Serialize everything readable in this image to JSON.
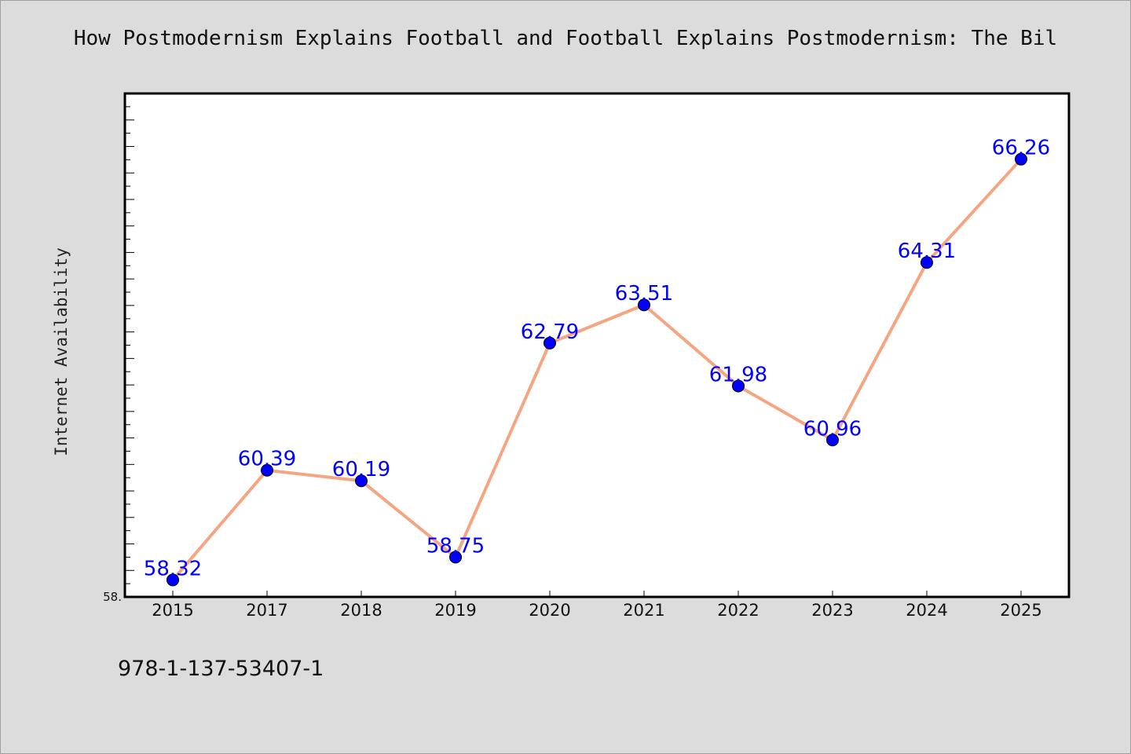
{
  "chart_data": {
    "type": "line",
    "title": "How Postmodernism Explains Football and Football Explains Postmodernism: The Bil",
    "xlabel": "",
    "ylabel": "Internet Availability",
    "categories": [
      "2015",
      "2017",
      "2018",
      "2019",
      "2020",
      "2021",
      "2022",
      "2023",
      "2024",
      "2025"
    ],
    "series": [
      {
        "values": [
          58.32,
          60.39,
          60.19,
          58.75,
          62.79,
          63.51,
          61.98,
          60.96,
          64.31,
          66.26
        ],
        "data_labels": [
          "58.32",
          "60.39",
          "60.19",
          "58.75",
          "62.79",
          "63.51",
          "61.98",
          "60.96",
          "64.31",
          "66.26"
        ]
      }
    ],
    "ylim": [
      58.0,
      67.5
    ],
    "y_tick_labels": [
      {
        "value": 58.0,
        "label": "58."
      }
    ],
    "grid": false,
    "colors": {
      "line": "#f4a582",
      "marker": "#0000ff",
      "label": "#0000ff",
      "plot_bg": "#ffffff",
      "page_bg": "#dcdcdc"
    }
  },
  "footer": {
    "isbn": "978-1-137-53407-1"
  }
}
